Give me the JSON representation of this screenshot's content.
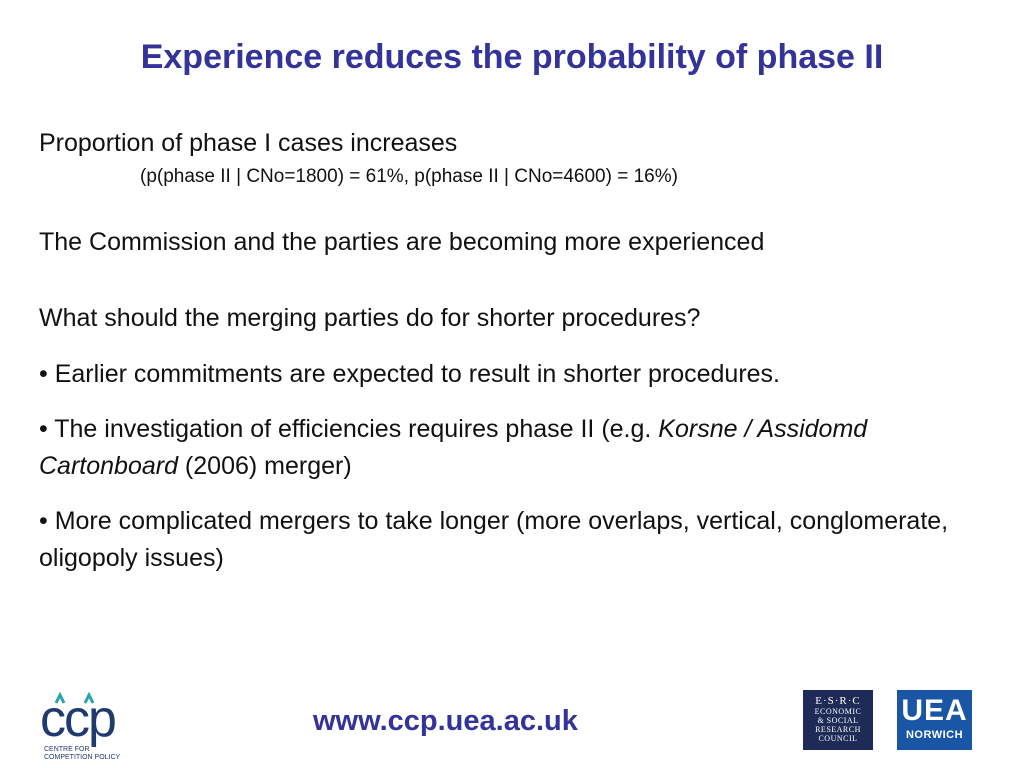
{
  "slide": {
    "title": "Experience reduces the probability of phase II",
    "line1": "Proportion of phase I cases increases",
    "line1_sub": "(p(phase II | CNo=1800) = 61%, p(phase II | CNo=4600) = 16%)",
    "line2": "The Commission and the parties are becoming more experienced",
    "question": "What should the merging parties do for shorter procedures?",
    "bullets": {
      "b1": "• Earlier commitments are expected to result in shorter procedures.",
      "b2_pre": "• The investigation of efficiencies requires phase II (e.g. ",
      "b2_italic": "Korsne / Assidomd Cartonboard",
      "b2_post": " (2006) merger)",
      "b3": "• More complicated mergers to take longer (more overlaps, vertical, conglomerate, oligopoly issues)"
    }
  },
  "footer": {
    "url": "www.ccp.uea.ac.uk",
    "ccp_logo": {
      "letters": "ccp",
      "caption_line1": "CENTRE FOR",
      "caption_line2": "COMPETITION POLICY"
    },
    "esrc_logo": {
      "line1": "E·S·R·C",
      "line2": "ECONOMIC",
      "line3": "& SOCIAL",
      "line4": "RESEARCH",
      "line5": "COUNCIL"
    },
    "uea_logo": {
      "line1": "UEA",
      "line2": "NORWICH"
    }
  },
  "colors": {
    "title": "#333399",
    "ccp_blue": "#1e3a6e",
    "ccp_teal": "#2aa3b5",
    "uea_blue": "#1a56a6",
    "esrc_navy": "#1e2b57"
  }
}
